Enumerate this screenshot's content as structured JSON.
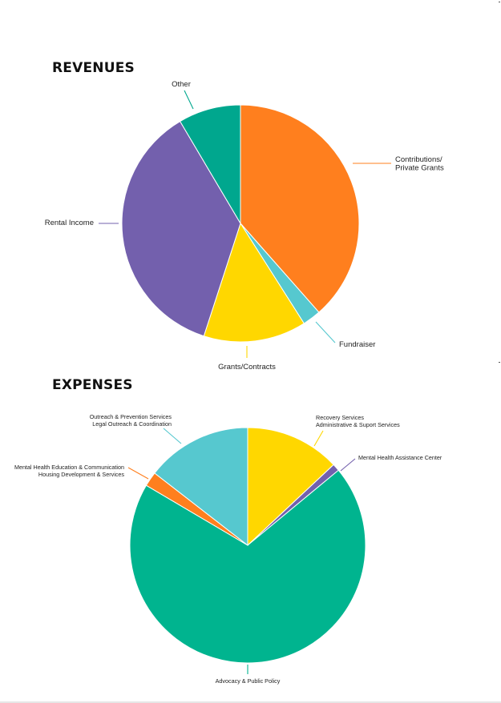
{
  "chart_data": [
    {
      "type": "pie",
      "title": "REVENUES",
      "start": "top",
      "direction": "clockwise",
      "slices": [
        {
          "label": "Contributions/\nPrivate Grants",
          "value": 38.5,
          "color": "#FF7F1E"
        },
        {
          "label": "Fundraiser",
          "value": 2.5,
          "color": "#56C8CF"
        },
        {
          "label": "Grants/Contracts",
          "value": 14.0,
          "color": "#FFD700"
        },
        {
          "label": "Rental Income",
          "value": 36.5,
          "color": "#7360AD"
        },
        {
          "label": "Other",
          "value": 8.5,
          "color": "#00A78E"
        }
      ]
    },
    {
      "type": "pie",
      "title": "EXPENSES",
      "start": "top",
      "direction": "clockwise",
      "slices": [
        {
          "label": "Recovery Services\nAdministrative & Suport Services",
          "value": 13.0,
          "color": "#FFD700"
        },
        {
          "label": "Mental Health Assistance Center",
          "value": 1.0,
          "color": "#7360AD"
        },
        {
          "label": "Advocacy & Public Policy",
          "value": 69.5,
          "color": "#00B48F"
        },
        {
          "label": "Mental Health Education & Communication\nHousing Development & Services",
          "value": 2.0,
          "color": "#FF7F1E"
        },
        {
          "label": "Outreach & Prevention Services\nLegal Outreach & Coordination",
          "value": 14.5,
          "color": "#56C8CF"
        }
      ]
    }
  ]
}
